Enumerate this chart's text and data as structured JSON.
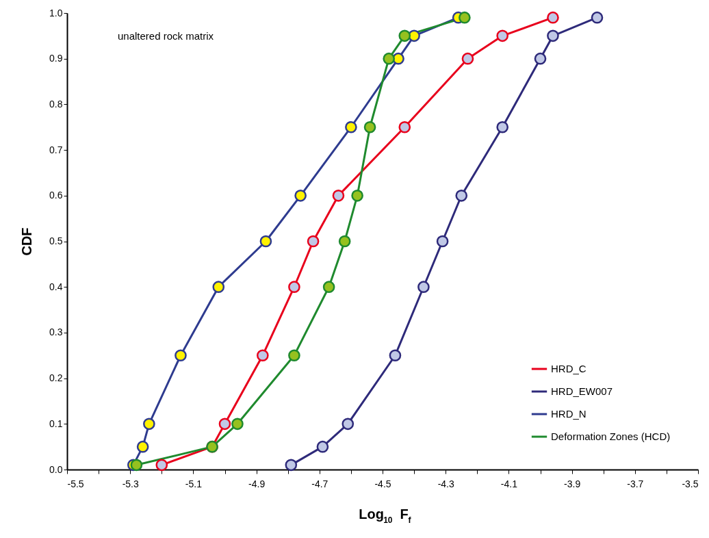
{
  "chart_data": {
    "type": "line",
    "xlabel": "Log$_{10}$ F$_{f}$",
    "ylabel": "CDF",
    "annotations": [
      "unaltered rock matrix"
    ],
    "xlim": [
      -5.5,
      -3.5
    ],
    "ylim": [
      0,
      1
    ],
    "xticks": [
      -5.5,
      {
        "value": -5.4,
        "label": null
      },
      -5.3,
      {
        "value": -5.2,
        "label": null
      },
      -5.1,
      {
        "value": -5.0,
        "label": null
      },
      -4.9,
      {
        "value": -4.8,
        "label": null
      },
      -4.7,
      {
        "value": -4.6,
        "label": null
      },
      -4.5,
      {
        "value": -4.4,
        "label": null
      },
      -4.3,
      {
        "value": -4.2,
        "label": null
      },
      -4.1,
      {
        "value": -4.0,
        "label": null
      },
      -3.9,
      {
        "value": -3.8,
        "label": null
      },
      -3.7,
      {
        "value": -3.6,
        "label": null
      },
      -3.5
    ],
    "yticks": [
      {
        "value": 0,
        "label": "0.0"
      },
      0.1,
      0.2,
      0.3,
      0.4,
      0.5,
      0.6,
      0.7,
      0.8,
      0.9,
      {
        "value": 1,
        "label": "1.0"
      }
    ],
    "grid": false,
    "legend": "bottom right",
    "marker": "circle",
    "line_style": "solid",
    "series": [
      {
        "name": "HRD_C",
        "color": "#e8001c",
        "x": [
          -5.2,
          -5.04,
          -5.0,
          -4.88,
          -4.78,
          -4.72,
          -4.64,
          -4.43,
          -4.23,
          -4.12,
          -3.96
        ],
        "values": [
          0.01,
          0.05,
          0.1,
          0.25,
          0.4,
          0.5,
          0.6,
          0.75,
          0.9,
          0.95,
          0.99
        ]
      },
      {
        "name": "HRD_EW007",
        "color": "#2e2a7a",
        "x": [
          -4.79,
          -4.69,
          -4.61,
          -4.46,
          -4.37,
          -4.31,
          -4.25,
          -4.12,
          -4.0,
          -3.96,
          -3.82
        ],
        "values": [
          0.01,
          0.05,
          0.1,
          0.25,
          0.4,
          0.5,
          0.6,
          0.75,
          0.9,
          0.95,
          0.99
        ]
      },
      {
        "name": "HRD_N",
        "color": "#2e3b8f",
        "x": [
          -5.29,
          -5.26,
          -5.24,
          -5.14,
          -5.02,
          -4.87,
          -4.76,
          -4.6,
          -4.45,
          -4.4,
          -4.26
        ],
        "values": [
          0.01,
          0.05,
          0.1,
          0.25,
          0.4,
          0.5,
          0.6,
          0.75,
          0.9,
          0.95,
          0.99
        ]
      },
      {
        "name": "Deformation Zones (HCD)",
        "color": "#1f8a2e",
        "x": [
          -5.28,
          -5.04,
          -4.96,
          -4.78,
          -4.67,
          -4.62,
          -4.58,
          -4.54,
          -4.48,
          -4.43,
          -4.24
        ],
        "values": [
          0.01,
          0.05,
          0.1,
          0.25,
          0.4,
          0.5,
          0.6,
          0.75,
          0.9,
          0.95,
          0.99
        ]
      }
    ]
  }
}
